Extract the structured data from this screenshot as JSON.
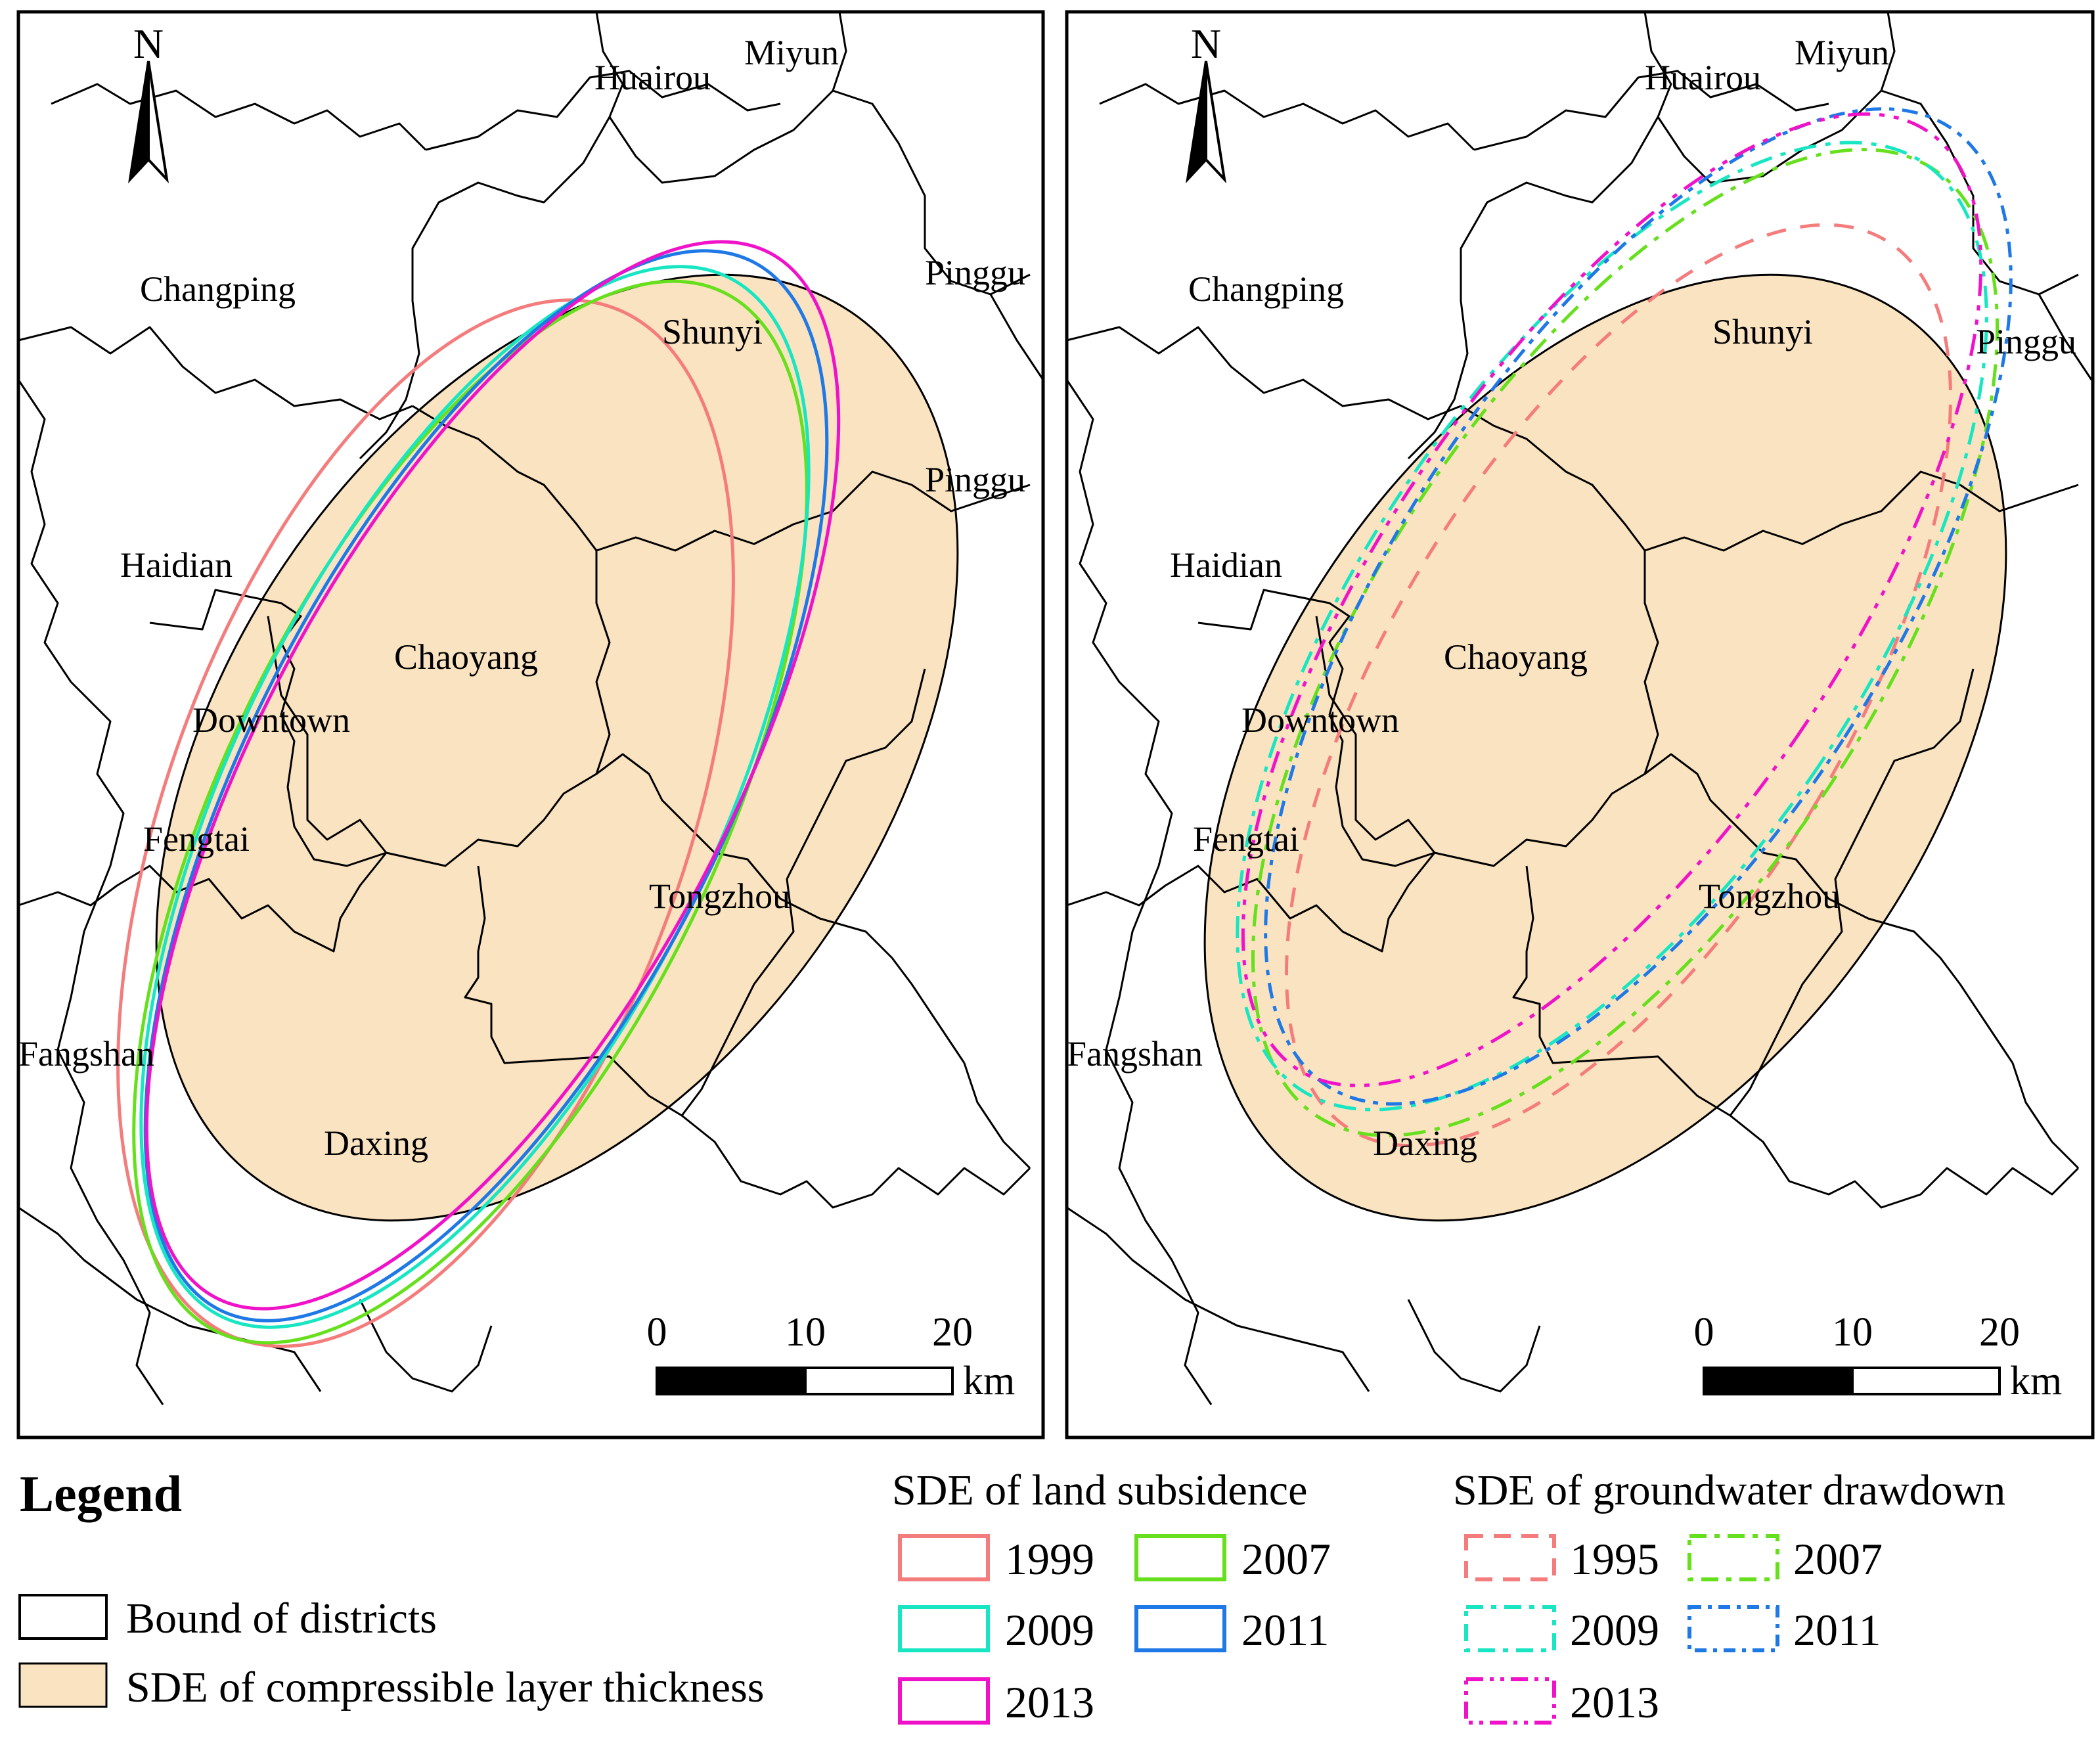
{
  "maps": [
    {
      "id": "subsidence",
      "north_label": "N",
      "districts": [
        "Huairou",
        "Miyun",
        "Changping",
        "Pinggu",
        "Shunyi",
        "Pinggu",
        "Haidian",
        "Chaoyang",
        "Downtown",
        "Fengtai",
        "Tongzhou",
        "Fangshan",
        "Daxing"
      ],
      "scale_ticks": [
        "0",
        "10",
        "20"
      ],
      "scale_unit": "km"
    },
    {
      "id": "drawdown",
      "north_label": "N",
      "districts": [
        "Huairou",
        "Miyun",
        "Changping",
        "Shunyi",
        "Pinggu",
        "Haidian",
        "Chaoyang",
        "Downtown",
        "Fengtai",
        "Tongzhou",
        "Fangshan",
        "Daxing"
      ],
      "scale_ticks": [
        "0",
        "10",
        "20"
      ],
      "scale_unit": "km"
    }
  ],
  "legend": {
    "title": "Legend",
    "bound_label": "Bound of districts",
    "sde_thickness_label": "SDE of compressible layer thickness",
    "sde_fill_color": "#fae3c0",
    "subsidence": {
      "title": "SDE of land subsidence",
      "items": [
        {
          "year": "1999",
          "color": "#f47c7c"
        },
        {
          "year": "2007",
          "color": "#66e01c"
        },
        {
          "year": "2009",
          "color": "#18e6c2"
        },
        {
          "year": "2011",
          "color": "#1e78e6"
        },
        {
          "year": "2013",
          "color": "#f012c8"
        }
      ]
    },
    "drawdown": {
      "title": "SDE of groundwater drawdown",
      "items": [
        {
          "year": "1995",
          "color": "#f47c7c"
        },
        {
          "year": "2007",
          "color": "#66e01c"
        },
        {
          "year": "2009",
          "color": "#18e6c2"
        },
        {
          "year": "2011",
          "color": "#1e78e6"
        },
        {
          "year": "2013",
          "color": "#f012c8"
        }
      ]
    }
  }
}
